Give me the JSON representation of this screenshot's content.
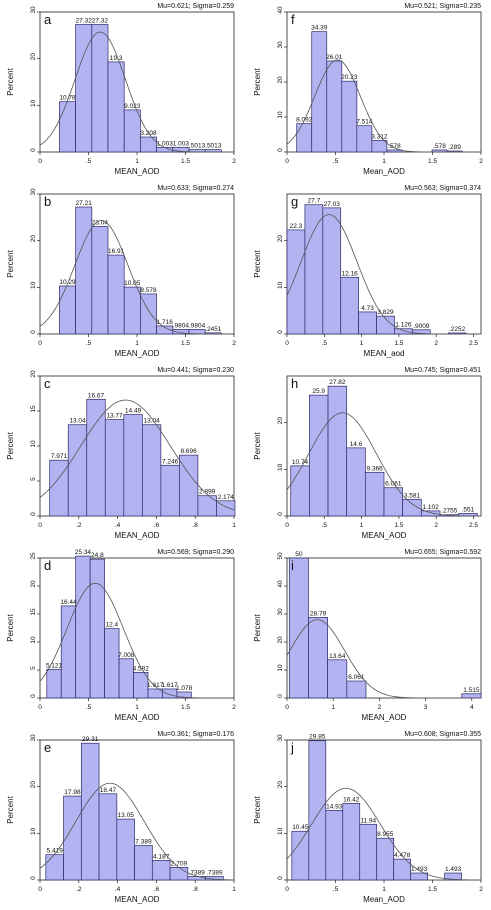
{
  "chart_data": [
    {
      "type": "bar",
      "panel": "a",
      "stats": "Mu=0.621; Sigma=0.259",
      "xlabel": "MEAN_AOD",
      "ylabel": "Percent",
      "xlim": [
        0,
        2
      ],
      "ylim": [
        0,
        30
      ],
      "xticks": [
        0,
        0.5,
        1,
        1.5,
        2
      ],
      "xtick_labels": [
        "0",
        ".5",
        "1",
        "1.5",
        "2"
      ],
      "yticks": [
        0,
        10,
        20,
        30
      ],
      "bin_start": 0.2,
      "bin_width": 0.167,
      "values": [
        10.78,
        27.32,
        27.32,
        19.3,
        9.023,
        3.208,
        1.003,
        1.003,
        0.5013,
        0.5013
      ],
      "data_labels": [
        "10.78",
        "27.32",
        "27.32",
        "19.3",
        "9.023",
        "3.208",
        "1.003",
        "1.003",
        ".5013",
        ".5013"
      ],
      "normal": {
        "mu": 0.621,
        "sigma": 0.259
      }
    },
    {
      "type": "bar",
      "panel": "b",
      "stats": "Mu=0.633; Sigma=0.274",
      "xlabel": "MEAN_AOD",
      "ylabel": "Percent",
      "xlim": [
        0,
        2
      ],
      "ylim": [
        0,
        30
      ],
      "xticks": [
        0,
        0.5,
        1,
        1.5,
        2
      ],
      "xtick_labels": [
        "0",
        ".5",
        "1",
        "1.5",
        "2"
      ],
      "yticks": [
        0,
        10,
        20,
        30
      ],
      "bin_start": 0.2,
      "bin_width": 0.167,
      "values": [
        10.29,
        27.21,
        23.04,
        16.91,
        10.05,
        8.578,
        1.716,
        0.9804,
        0.9804,
        0.2451
      ],
      "data_labels": [
        "10.29",
        "27.21",
        "23.04",
        "16.91",
        "10.05",
        "8.578",
        "1.716",
        ".9804",
        ".9804",
        ".2451"
      ],
      "normal": {
        "mu": 0.633,
        "sigma": 0.274
      }
    },
    {
      "type": "bar",
      "panel": "c",
      "stats": "Mu=0.441; Sigma=0.230",
      "xlabel": "MEAN_AOD",
      "ylabel": "Percent",
      "xlim": [
        0,
        1
      ],
      "ylim": [
        0,
        20
      ],
      "xticks": [
        0,
        0.2,
        0.4,
        0.6,
        0.8,
        1
      ],
      "xtick_labels": [
        "0",
        ".2",
        ".4",
        ".6",
        ".8",
        "1"
      ],
      "yticks": [
        0,
        5,
        10,
        15,
        20
      ],
      "bin_start": 0.05,
      "bin_width": 0.0955,
      "values": [
        7.971,
        13.04,
        16.67,
        13.77,
        14.49,
        13.04,
        7.246,
        8.696,
        2.899,
        2.174
      ],
      "data_labels": [
        "7.971",
        "13.04",
        "16.67",
        "13.77",
        "14.49",
        "13.04",
        "7.246",
        "8.696",
        "2.899",
        "2.174"
      ],
      "normal": {
        "mu": 0.441,
        "sigma": 0.23
      }
    },
    {
      "type": "bar",
      "panel": "d",
      "stats": "Mu=0.569; Sigma=0.290",
      "xlabel": "MEAN_AOD",
      "ylabel": "Percent",
      "xlim": [
        0,
        2
      ],
      "ylim": [
        0,
        25
      ],
      "xticks": [
        0,
        0.5,
        1,
        1.5,
        2
      ],
      "xtick_labels": [
        "0",
        ".5",
        "1",
        "1.5",
        "2"
      ],
      "yticks": [
        0,
        5,
        10,
        15,
        20,
        25
      ],
      "bin_start": 0.07,
      "bin_width": 0.149,
      "values": [
        5.121,
        16.44,
        25.34,
        24.8,
        12.4,
        7.008,
        4.582,
        1.617,
        1.617,
        1.078
      ],
      "data_labels": [
        "5.121",
        "16.44",
        "25.34",
        "24.8",
        "12.4",
        "7.008",
        "4.582",
        "1.617",
        "1.617",
        "1.078"
      ],
      "normal": {
        "mu": 0.569,
        "sigma": 0.29
      }
    },
    {
      "type": "bar",
      "panel": "e",
      "stats": "Mu=0.361; Sigma=0.176",
      "xlabel": "MEAN_AOD",
      "ylabel": "Percent",
      "xlim": [
        0,
        1
      ],
      "ylim": [
        0,
        30
      ],
      "xticks": [
        0,
        0.2,
        0.4,
        0.6,
        0.8,
        1
      ],
      "xtick_labels": [
        "0",
        ".2",
        ".4",
        ".6",
        ".8",
        "1"
      ],
      "yticks": [
        0,
        10,
        20,
        30
      ],
      "bin_start": 0.03,
      "bin_width": 0.0915,
      "values": [
        5.419,
        17.98,
        29.31,
        18.47,
        13.05,
        7.389,
        4.187,
        2.709,
        0.7389,
        0.7389
      ],
      "data_labels": [
        "5.419",
        "17.98",
        "29.31",
        "18.47",
        "13.05",
        "7.389",
        "4.187",
        "2.709",
        ".7389",
        ".7389"
      ],
      "normal": {
        "mu": 0.361,
        "sigma": 0.176
      }
    },
    {
      "type": "bar",
      "panel": "f",
      "stats": "Mu=0.521; Sigma=0.235",
      "xlabel": "Mean_AOD",
      "ylabel": "Percent",
      "xlim": [
        0,
        2
      ],
      "ylim": [
        0,
        40
      ],
      "xticks": [
        0,
        0.5,
        1,
        1.5,
        2
      ],
      "xtick_labels": [
        "0",
        ".5",
        "1",
        "1.5",
        "2"
      ],
      "yticks": [
        0,
        10,
        20,
        30,
        40
      ],
      "bin_start": 0.1,
      "bin_width": 0.155,
      "values": [
        8.092,
        34.39,
        26.01,
        20.23,
        7.514,
        3.312,
        0.578,
        0,
        0,
        0.578,
        0.289
      ],
      "data_labels": [
        "8.092",
        "34.39",
        "26.01",
        "20.23",
        "7.514",
        "3.312",
        ".578",
        "",
        "",
        ".578",
        ".289"
      ],
      "normal": {
        "mu": 0.521,
        "sigma": 0.235
      }
    },
    {
      "type": "bar",
      "panel": "g",
      "stats": "Mu=0.563; Sigma=0.374",
      "xlabel": "MEAN_aod",
      "ylabel": "Percent",
      "xlim": [
        0,
        2.6
      ],
      "ylim": [
        0,
        30
      ],
      "xticks": [
        0,
        0.5,
        1,
        1.5,
        2,
        2.5
      ],
      "xtick_labels": [
        "0",
        ".5",
        "1",
        "1.5",
        "2",
        "2.5"
      ],
      "yticks": [
        0,
        10,
        20
      ],
      "bin_start": 0.0,
      "bin_width": 0.24,
      "values": [
        22.3,
        27.7,
        27.03,
        12.16,
        4.73,
        3.829,
        1.126,
        0.9009,
        0,
        0.2252
      ],
      "data_labels": [
        "22.3",
        "27.7",
        "27.03",
        "12.16",
        "4.73",
        "3.829",
        "1.126",
        ".9009",
        "",
        ".2252"
      ],
      "normal": {
        "mu": 0.563,
        "sigma": 0.374
      }
    },
    {
      "type": "bar",
      "panel": "h",
      "stats": "Mu=0.745; Sigma=0.451",
      "xlabel": "MEAN_AOD",
      "ylabel": "Percent",
      "xlim": [
        0,
        2.6
      ],
      "ylim": [
        0,
        30
      ],
      "xticks": [
        0,
        0.5,
        1,
        1.5,
        2,
        2.5
      ],
      "xtick_labels": [
        "0",
        ".5",
        "1",
        "1.5",
        "2",
        "2.5"
      ],
      "yticks": [
        0,
        10,
        20
      ],
      "bin_start": 0.05,
      "bin_width": 0.25,
      "values": [
        10.74,
        25.9,
        27.82,
        14.6,
        9.366,
        6.061,
        3.581,
        1.102,
        0.2755,
        0.551
      ],
      "data_labels": [
        "10.74",
        "25.9",
        "27.82",
        "14.6",
        "9.366",
        "6.061",
        "3.581",
        "1.102",
        ".2755",
        ".551"
      ],
      "normal": {
        "mu": 0.745,
        "sigma": 0.451
      }
    },
    {
      "type": "bar",
      "panel": "i",
      "stats": "Mu=0.655; Sigma=0.592",
      "xlabel": "MEAN_AOD",
      "ylabel": "Percent",
      "xlim": [
        0,
        4.2
      ],
      "ylim": [
        0,
        50
      ],
      "xticks": [
        0,
        1,
        2,
        3,
        4
      ],
      "xtick_labels": [
        "0",
        "1",
        "2",
        "3",
        "4"
      ],
      "yticks": [
        0,
        10,
        20,
        30,
        40,
        50
      ],
      "bin_start": 0.05,
      "bin_width": 0.415,
      "values": [
        50,
        28.79,
        13.64,
        6.061,
        0,
        0,
        0,
        0,
        0,
        1.515
      ],
      "data_labels": [
        "50",
        "28.79",
        "13.64",
        "6.061",
        "",
        "",
        "",
        "",
        "",
        "1.515"
      ],
      "normal": {
        "mu": 0.655,
        "sigma": 0.592
      }
    },
    {
      "type": "bar",
      "panel": "j",
      "stats": "Mu=0.608; Sigma=0.355",
      "xlabel": "Mean_AOD",
      "ylabel": "Percent",
      "xlim": [
        0,
        2
      ],
      "ylim": [
        0,
        30
      ],
      "xticks": [
        0,
        0.5,
        1,
        1.5,
        2
      ],
      "xtick_labels": [
        "0",
        ".5",
        "1",
        "1.5",
        "2"
      ],
      "yticks": [
        0,
        10,
        20,
        30
      ],
      "bin_start": 0.05,
      "bin_width": 0.175,
      "values": [
        10.45,
        29.85,
        14.93,
        16.42,
        11.94,
        8.955,
        4.478,
        1.493,
        0,
        1.493
      ],
      "data_labels": [
        "10.45",
        "29.85",
        "14.93",
        "16.42",
        "11.94",
        "8.955",
        "4.478",
        "1.493",
        "",
        "1.493"
      ],
      "normal": {
        "mu": 0.608,
        "sigma": 0.355
      }
    }
  ],
  "colors": {
    "bar_fill": "#b3b3f2",
    "bar_stroke": "#2a2a6a",
    "curve": "#555555",
    "axis": "#222222"
  }
}
